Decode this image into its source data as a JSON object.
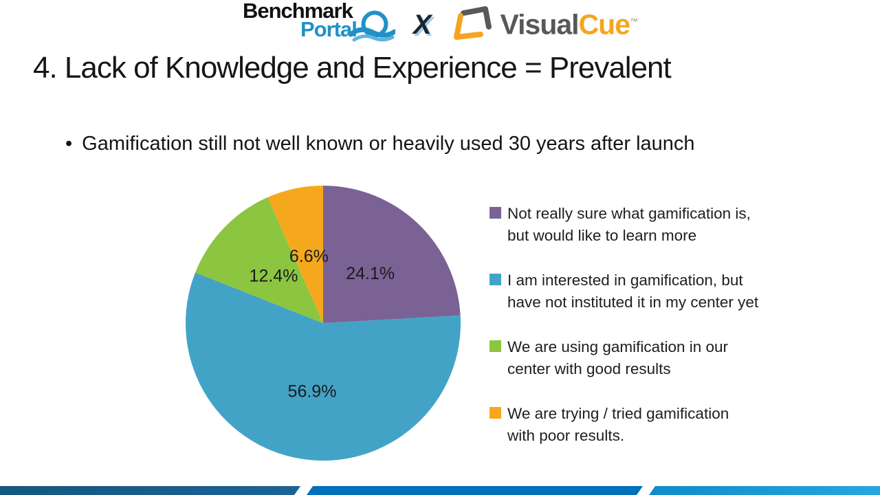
{
  "header": {
    "benchmark_logo": {
      "line1": "Benchmark",
      "line2": "Portal"
    },
    "x_separator": "X",
    "visualcue_logo": {
      "part1": "Visual",
      "part2": "Cue",
      "tm": "™"
    }
  },
  "slide": {
    "title": "4. Lack of Knowledge and Experience = Prevalent",
    "bullet_marker": "•",
    "bullet": "Gamification still not well known or heavily used 30 years after launch"
  },
  "chart_data": {
    "type": "pie",
    "title": "",
    "start_angle_deg": 0,
    "direction": "clockwise",
    "legend_position": "right",
    "label_radius_fraction": 0.5,
    "slices": [
      {
        "value": 24.1,
        "display": "24.1%",
        "color": "#7B6294",
        "label": "Not really sure what gamification is, but would like to learn more",
        "legend_lines": [
          "Not really sure what gamification is,",
          "but would like to learn more"
        ]
      },
      {
        "value": 56.9,
        "display": "56.9%",
        "color": "#43A3C7",
        "label": "I am interested in gamification, but have not instituted it in my center yet",
        "legend_lines": [
          "I am interested in gamification, but",
          "have not instituted it in my center yet"
        ]
      },
      {
        "value": 12.4,
        "display": "12.4%",
        "color": "#8CC540",
        "label": "We are using gamification in our center with good results",
        "legend_lines": [
          "We are using gamification in our",
          "center with good results"
        ]
      },
      {
        "value": 6.6,
        "display": "6.6%",
        "color": "#F6A81C",
        "label": "We are trying / tried gamification with poor results.",
        "legend_lines": [
          "We are trying / tried gamification",
          "with poor results."
        ]
      }
    ]
  },
  "footer": {
    "segments": [
      {
        "name": "dark-blue",
        "color_start": "#14567E",
        "color_end": "#1C6396"
      },
      {
        "name": "medium-blue",
        "color_start": "#0070BB",
        "color_end": "#0070BB"
      },
      {
        "name": "light-blue",
        "color_start": "#0E8CCB",
        "color_end": "#29ABE2"
      }
    ]
  }
}
